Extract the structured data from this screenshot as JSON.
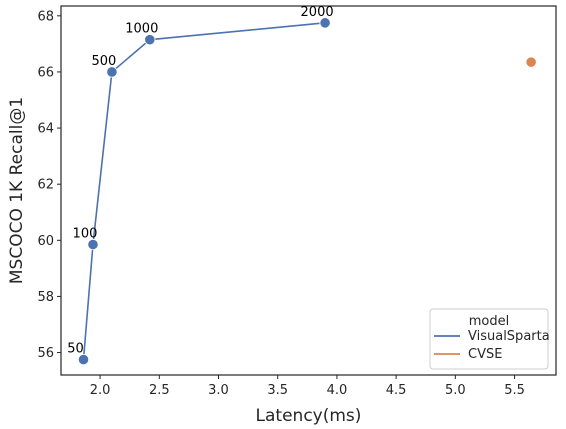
{
  "chart_data": {
    "type": "line",
    "xlabel": "Latency(ms)",
    "ylabel": "MSCOCO 1K Recall@1",
    "xlim": [
      1.67,
      5.85
    ],
    "ylim": [
      55.2,
      68.35
    ],
    "xticks": [
      2.0,
      2.5,
      3.0,
      3.5,
      4.0,
      4.5,
      5.0,
      5.5
    ],
    "xtick_labels": [
      "2.0",
      "2.5",
      "3.0",
      "3.5",
      "4.0",
      "4.5",
      "5.0",
      "5.5"
    ],
    "yticks": [
      56,
      58,
      60,
      62,
      64,
      66,
      68
    ],
    "ytick_labels": [
      "56",
      "58",
      "60",
      "62",
      "64",
      "66",
      "68"
    ],
    "grid": false,
    "legend": {
      "title": "model",
      "placement": "lower-right",
      "entries": [
        "VisualSparta",
        "CVSE"
      ]
    },
    "series": [
      {
        "name": "VisualSparta",
        "color": "#4c72b0",
        "points": [
          {
            "x": 1.86,
            "y": 55.75,
            "label": "50"
          },
          {
            "x": 1.94,
            "y": 59.85,
            "label": "100"
          },
          {
            "x": 2.1,
            "y": 66.0,
            "label": "500"
          },
          {
            "x": 2.42,
            "y": 67.15,
            "label": "1000"
          },
          {
            "x": 3.9,
            "y": 67.75,
            "label": "2000"
          }
        ]
      },
      {
        "name": "CVSE",
        "color": "#dd8452",
        "points": [
          {
            "x": 5.64,
            "y": 66.35,
            "label": ""
          }
        ]
      }
    ]
  }
}
